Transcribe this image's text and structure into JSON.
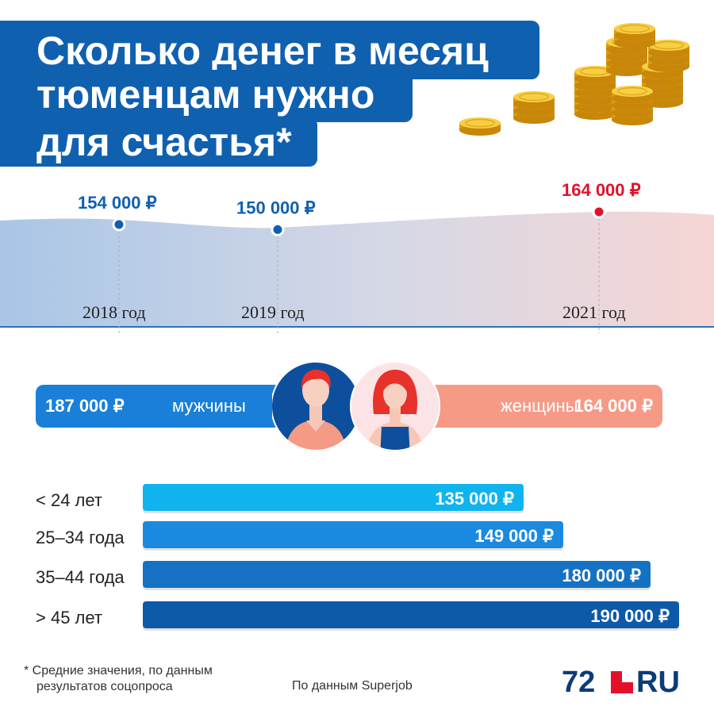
{
  "title": {
    "line1": "Сколько денег в месяц",
    "line2": "тюменцам нужно",
    "line3": "для счастья*"
  },
  "colors": {
    "brand_blue": "#1060b0",
    "highlight_red": "#e4102a",
    "men_blue": "#1a7fd8",
    "women_salmon": "#f69a86"
  },
  "chart_data": [
    {
      "type": "line",
      "x": [
        "2018 год",
        "2019 год",
        "2021 год"
      ],
      "series": [
        {
          "values": [
            154000,
            150000,
            164000
          ]
        }
      ],
      "labels": [
        "154 000 ₽",
        "150 000 ₽",
        "164 000 ₽"
      ],
      "title": "",
      "xlabel": "",
      "ylabel": ""
    },
    {
      "type": "bar",
      "categories": [
        "мужчины",
        "женщины"
      ],
      "values": [
        187000,
        164000
      ],
      "labels": [
        "187 000 ₽",
        "164 000 ₽"
      ],
      "title": "",
      "xlabel": "",
      "ylabel": ""
    },
    {
      "type": "bar",
      "orientation": "horizontal",
      "categories": [
        "< 24 лет",
        "25–34 года",
        "35–44 года",
        "> 45 лет"
      ],
      "values": [
        135000,
        149000,
        180000,
        190000
      ],
      "labels": [
        "135 000 ₽",
        "149 000 ₽",
        "180 000 ₽",
        "190 000 ₽"
      ],
      "bar_colors": [
        "#0fb4ee",
        "#1a8ae0",
        "#1571c4",
        "#0d5aa8"
      ],
      "title": "",
      "xlabel": "",
      "ylabel": ""
    }
  ],
  "footer": {
    "note_line1": "* Средние значения, по данным",
    "note_line2": "результатов соцопроса",
    "source": "По данным Superjob",
    "logo_number": "72",
    "logo_text": "RU"
  }
}
